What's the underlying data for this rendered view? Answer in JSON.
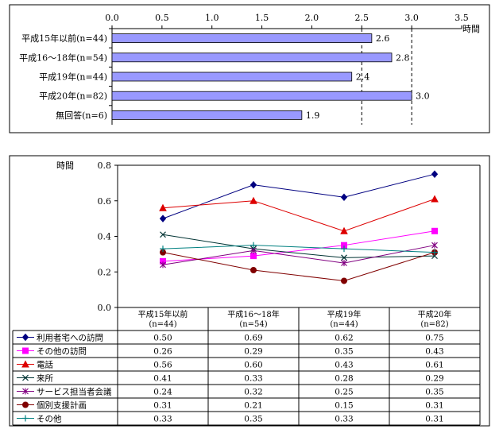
{
  "chart_data": [
    {
      "type": "bar",
      "orientation": "horizontal",
      "categories": [
        "平成15年以前(n=44)",
        "平成16〜18年(n=54)",
        "平成19年(n=44)",
        "平成20年(n=82)",
        "無回答(n=6)"
      ],
      "values": [
        2.6,
        2.8,
        2.4,
        3.0,
        1.9
      ],
      "value_labels": [
        "2.6",
        "2.8",
        "2.4",
        "3.0",
        "1.9"
      ],
      "xticks": [
        "0.0",
        "0.5",
        "1.0",
        "1.5",
        "2.0",
        "2.5",
        "3.0",
        "3.5"
      ],
      "xlim": [
        0,
        3.5
      ],
      "unit": "時間",
      "grid": "dashed vertical at 2.5, 3.0",
      "bar_color": "#9999ff"
    },
    {
      "type": "line",
      "categories": [
        "平成15年以前",
        "平成16〜18年",
        "平成19年",
        "平成20年"
      ],
      "category_n": [
        "(n=44)",
        "(n=54)",
        "(n=44)",
        "(n=82)"
      ],
      "ylabel": "時間",
      "ylim": [
        0,
        0.8
      ],
      "yticks": [
        "0.0",
        "0.2",
        "0.4",
        "0.6",
        "0.8"
      ],
      "series": [
        {
          "name": "利用者宅への訪問",
          "values": [
            0.5,
            0.69,
            0.62,
            0.75
          ],
          "labels": [
            "0.50",
            "0.69",
            "0.62",
            "0.75"
          ],
          "color": "#000080",
          "marker": "diamond"
        },
        {
          "name": "その他の訪問",
          "values": [
            0.26,
            0.29,
            0.35,
            0.43
          ],
          "labels": [
            "0.26",
            "0.29",
            "0.35",
            "0.43"
          ],
          "color": "#ff00ff",
          "marker": "square"
        },
        {
          "name": "電話",
          "values": [
            0.56,
            0.6,
            0.43,
            0.61
          ],
          "labels": [
            "0.56",
            "0.60",
            "0.43",
            "0.61"
          ],
          "color": "#dd0000",
          "marker": "triangle"
        },
        {
          "name": "来所",
          "values": [
            0.41,
            0.33,
            0.28,
            0.29
          ],
          "labels": [
            "0.41",
            "0.33",
            "0.28",
            "0.29"
          ],
          "color": "#003333",
          "marker": "x"
        },
        {
          "name": "サービス担当者会議",
          "values": [
            0.24,
            0.32,
            0.25,
            0.35
          ],
          "labels": [
            "0.24",
            "0.32",
            "0.25",
            "0.35"
          ],
          "color": "#800080",
          "marker": "star"
        },
        {
          "name": "個別支援計画",
          "values": [
            0.31,
            0.21,
            0.15,
            0.31
          ],
          "labels": [
            "0.31",
            "0.21",
            "0.15",
            "0.31"
          ],
          "color": "#800000",
          "marker": "circle"
        },
        {
          "name": "その他",
          "values": [
            0.33,
            0.35,
            0.33,
            0.31
          ],
          "labels": [
            "0.33",
            "0.35",
            "0.33",
            "0.31"
          ],
          "color": "#008080",
          "marker": "plus"
        }
      ]
    }
  ]
}
